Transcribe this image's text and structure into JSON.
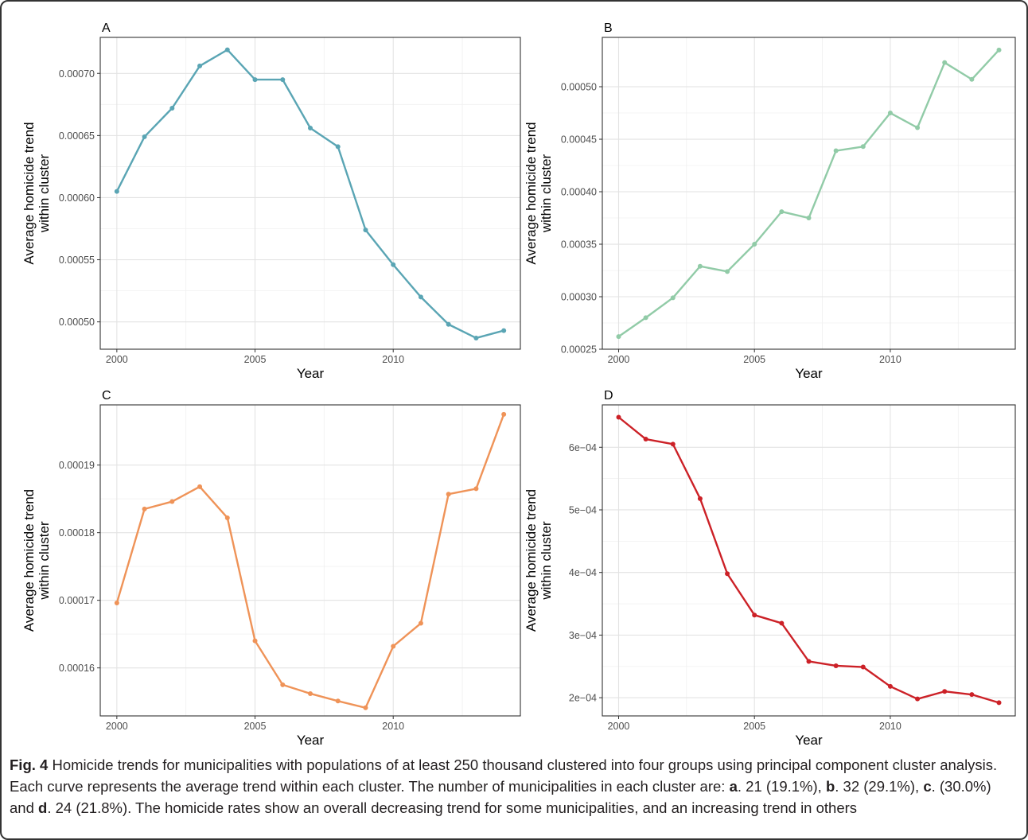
{
  "caption": {
    "label": "Fig. 4",
    "text": " Homicide trends for municipalities with populations of at least 250 thousand clustered into four groups using principal component cluster analysis. Each curve represents the average trend within each cluster. The number of municipalities in each cluster are: ",
    "items": [
      {
        "letter": "a",
        "text": ". 21 (19.1%), "
      },
      {
        "letter": "b",
        "text": ". 32 (29.1%), "
      },
      {
        "letter": "c",
        "text": ". (30.0%) and "
      },
      {
        "letter": "d",
        "text": ". 24 (21.8%). The homicide rates show an overall decreasing trend for some municipalities, and an increasing trend in others"
      }
    ]
  },
  "chart_data": [
    {
      "type": "line",
      "panel": "A",
      "xlabel": "Year",
      "ylabel": [
        "Average homicide trend",
        "within cluster"
      ],
      "color": "#5aa5b4",
      "xlim": [
        1999.4,
        2014.6
      ],
      "ylim": [
        0.000478,
        0.000729
      ],
      "xticks": [
        2000,
        2005,
        2010
      ],
      "yticks": [
        0.0005,
        0.00055,
        0.0006,
        0.00065,
        0.0007
      ],
      "ytick_labels": [
        "0.00050",
        "0.00055",
        "0.00060",
        "0.00065",
        "0.00070"
      ],
      "x": [
        2000,
        2001,
        2002,
        2003,
        2004,
        2005,
        2006,
        2007,
        2008,
        2009,
        2010,
        2011,
        2012,
        2013,
        2014
      ],
      "values": [
        0.000605,
        0.000649,
        0.000672,
        0.000706,
        0.000719,
        0.000695,
        0.000695,
        0.000656,
        0.000641,
        0.000574,
        0.000546,
        0.00052,
        0.000498,
        0.000487,
        0.000493
      ]
    },
    {
      "type": "line",
      "panel": "B",
      "xlabel": "Year",
      "ylabel": [
        "Average homicide trend",
        "within cluster"
      ],
      "color": "#91cba7",
      "xlim": [
        1999.4,
        2014.6
      ],
      "ylim": [
        0.00025,
        0.000547
      ],
      "xticks": [
        2000,
        2005,
        2010
      ],
      "yticks": [
        0.00025,
        0.0003,
        0.00035,
        0.0004,
        0.00045,
        0.0005
      ],
      "ytick_labels": [
        "0.00025",
        "0.00030",
        "0.00035",
        "0.00040",
        "0.00045",
        "0.00050"
      ],
      "x": [
        2000,
        2001,
        2002,
        2003,
        2004,
        2005,
        2006,
        2007,
        2008,
        2009,
        2010,
        2011,
        2012,
        2013,
        2014
      ],
      "values": [
        0.000262,
        0.00028,
        0.000299,
        0.000329,
        0.000324,
        0.00035,
        0.000381,
        0.000375,
        0.000439,
        0.000443,
        0.000475,
        0.000461,
        0.000523,
        0.000507,
        0.000535
      ]
    },
    {
      "type": "line",
      "panel": "C",
      "xlabel": "Year",
      "ylabel": [
        "Average homicide trend",
        "within cluster"
      ],
      "color": "#ef9358",
      "xlim": [
        1999.4,
        2014.6
      ],
      "ylim": [
        0.0001529,
        0.0001989
      ],
      "xticks": [
        2000,
        2005,
        2010
      ],
      "yticks": [
        0.00016,
        0.00017,
        0.00018,
        0.00019
      ],
      "ytick_labels": [
        "0.00016",
        "0.00017",
        "0.00018",
        "0.00019"
      ],
      "x": [
        2000,
        2001,
        2002,
        2003,
        2004,
        2005,
        2006,
        2007,
        2008,
        2009,
        2010,
        2011,
        2012,
        2013,
        2014
      ],
      "values": [
        0.0001696,
        0.0001835,
        0.0001846,
        0.0001868,
        0.0001822,
        0.000164,
        0.0001575,
        0.0001562,
        0.0001551,
        0.0001541,
        0.0001632,
        0.0001666,
        0.0001857,
        0.0001865,
        0.0001975
      ]
    },
    {
      "type": "line",
      "panel": "D",
      "xlabel": "Year",
      "ylabel": [
        "Average homicide trend",
        "within cluster"
      ],
      "color": "#cc2127",
      "xlim": [
        1999.4,
        2014.6
      ],
      "ylim": [
        0.0001709,
        0.0006677
      ],
      "xticks": [
        2000,
        2005,
        2010
      ],
      "yticks": [
        0.0002,
        0.0003,
        0.0004,
        0.0005,
        0.0006
      ],
      "ytick_labels": [
        "2e−04",
        "3e−04",
        "4e−04",
        "5e−04",
        "6e−04"
      ],
      "x": [
        2000,
        2001,
        2002,
        2003,
        2004,
        2005,
        2006,
        2007,
        2008,
        2009,
        2010,
        2011,
        2012,
        2013,
        2014
      ],
      "values": [
        0.000648,
        0.000613,
        0.000605,
        0.000518,
        0.000398,
        0.000332,
        0.000319,
        0.000258,
        0.000251,
        0.000249,
        0.000218,
        0.000198,
        0.00021,
        0.000205,
        0.000192
      ]
    }
  ]
}
